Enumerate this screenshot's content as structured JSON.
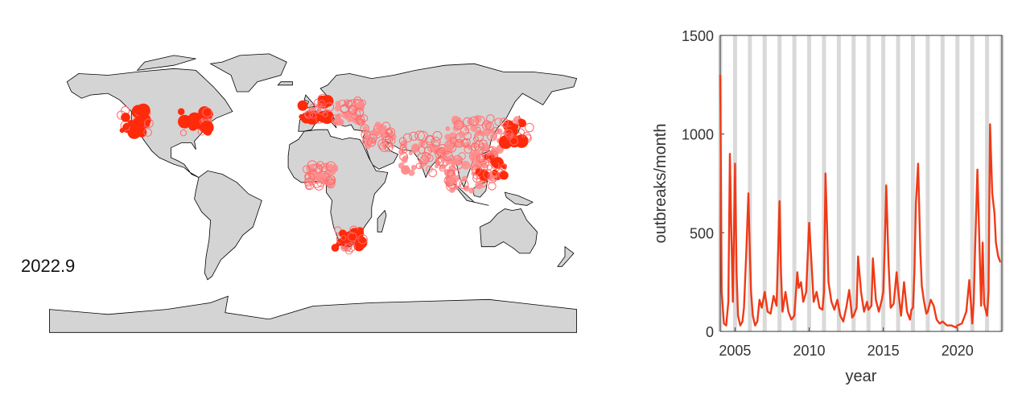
{
  "map": {
    "year_label": "2022.9",
    "colors": {
      "land": "#d4d4d4",
      "coast": "#000000",
      "recent_outbreak": "#ff2a0a",
      "older_outbreak": "#ff8c8c",
      "ring": "#ff6b6b"
    },
    "clusters": [
      {
        "region": "North America east",
        "lon": -80,
        "lat": 42,
        "level": 3
      },
      {
        "region": "US west coast",
        "lon": -122,
        "lat": 42,
        "level": 3
      },
      {
        "region": "Western Europe",
        "lon": 2,
        "lat": 50,
        "level": 3
      },
      {
        "region": "Eastern Europe",
        "lon": 25,
        "lat": 48,
        "level": 2
      },
      {
        "region": "Middle East",
        "lon": 45,
        "lat": 33,
        "level": 2
      },
      {
        "region": "India",
        "lon": 78,
        "lat": 22,
        "level": 1
      },
      {
        "region": "China",
        "lon": 110,
        "lat": 32,
        "level": 1
      },
      {
        "region": "Southeast Asia",
        "lon": 105,
        "lat": 12,
        "level": 1
      },
      {
        "region": "West Africa",
        "lon": 5,
        "lat": 9,
        "level": 2
      },
      {
        "region": "South Africa",
        "lon": 25,
        "lat": -30,
        "level": 3
      },
      {
        "region": "Japan",
        "lon": 138,
        "lat": 36,
        "level": 3
      },
      {
        "region": "Philippines",
        "lon": 121,
        "lat": 15,
        "level": 3
      }
    ]
  },
  "chart_data": {
    "type": "line",
    "xlabel": "year",
    "ylabel": "outbreaks/month",
    "xticks": [
      2005,
      2010,
      2015,
      2020
    ],
    "yticks": [
      0,
      500,
      1000,
      1500
    ],
    "xlim": [
      2004,
      2023
    ],
    "ylim": [
      0,
      1500
    ],
    "grid": "vertical bands at each year start",
    "color": "#f03a17",
    "x": [
      2004.0,
      2004.1,
      2004.25,
      2004.4,
      2004.55,
      2004.65,
      2004.75,
      2004.85,
      2005.0,
      2005.1,
      2005.2,
      2005.35,
      2005.5,
      2005.6,
      2005.75,
      2005.9,
      2006.0,
      2006.08,
      2006.2,
      2006.35,
      2006.5,
      2006.65,
      2006.8,
      2007.0,
      2007.2,
      2007.4,
      2007.6,
      2007.8,
      2008.0,
      2008.1,
      2008.2,
      2008.4,
      2008.6,
      2008.8,
      2009.0,
      2009.2,
      2009.3,
      2009.45,
      2009.6,
      2009.8,
      2010.0,
      2010.1,
      2010.3,
      2010.5,
      2010.7,
      2010.9,
      2011.0,
      2011.1,
      2011.2,
      2011.3,
      2011.5,
      2011.7,
      2011.9,
      2012.1,
      2012.3,
      2012.5,
      2012.7,
      2012.9,
      2013.0,
      2013.2,
      2013.3,
      2013.5,
      2013.7,
      2013.9,
      2014.0,
      2014.2,
      2014.3,
      2014.5,
      2014.7,
      2014.9,
      2015.0,
      2015.1,
      2015.2,
      2015.35,
      2015.5,
      2015.7,
      2015.9,
      2016.0,
      2016.2,
      2016.4,
      2016.6,
      2016.8,
      2016.9,
      2017.0,
      2017.1,
      2017.2,
      2017.35,
      2017.5,
      2017.6,
      2017.75,
      2017.9,
      2018.0,
      2018.2,
      2018.4,
      2018.6,
      2018.8,
      2019.0,
      2019.3,
      2019.6,
      2019.9,
      2020.0,
      2020.3,
      2020.6,
      2020.8,
      2021.0,
      2021.1,
      2021.2,
      2021.35,
      2021.5,
      2021.6,
      2021.7,
      2021.8,
      2022.0,
      2022.1,
      2022.2,
      2022.35,
      2022.5,
      2022.6,
      2022.75,
      2022.9
    ],
    "y": [
      1300,
      200,
      40,
      30,
      150,
      900,
      500,
      150,
      850,
      300,
      80,
      30,
      50,
      120,
      380,
      700,
      400,
      200,
      80,
      30,
      50,
      160,
      120,
      200,
      100,
      90,
      180,
      130,
      660,
      300,
      100,
      200,
      100,
      60,
      80,
      300,
      220,
      250,
      150,
      200,
      550,
      420,
      150,
      200,
      120,
      110,
      200,
      800,
      550,
      250,
      150,
      110,
      160,
      80,
      50,
      120,
      210,
      70,
      80,
      120,
      380,
      200,
      100,
      150,
      110,
      130,
      370,
      160,
      100,
      160,
      200,
      440,
      740,
      350,
      120,
      140,
      300,
      210,
      80,
      250,
      100,
      60,
      110,
      120,
      300,
      650,
      850,
      400,
      230,
      150,
      90,
      100,
      160,
      130,
      60,
      40,
      50,
      30,
      30,
      20,
      30,
      40,
      100,
      260,
      40,
      150,
      430,
      820,
      400,
      130,
      450,
      140,
      80,
      200,
      1050,
      700,
      600,
      450,
      380,
      350
    ]
  }
}
